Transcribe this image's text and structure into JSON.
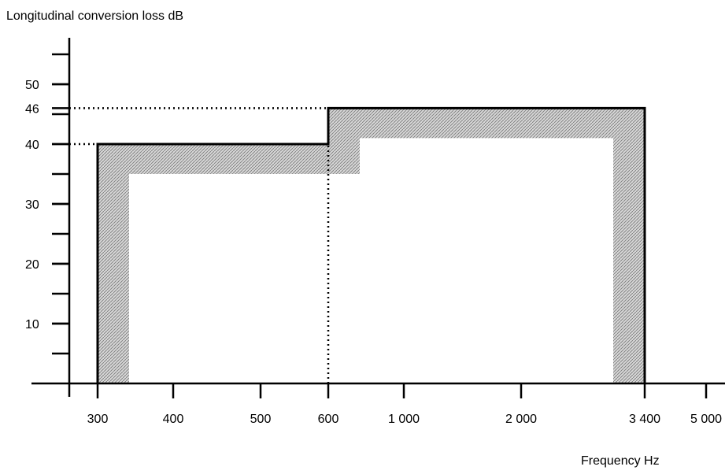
{
  "chart_data": {
    "type": "line",
    "title": "",
    "ylabel": "Longitudinal conversion loss dB",
    "xlabel": "Frequency Hz",
    "ylim": [
      0,
      57
    ],
    "y_ticks": [
      5,
      10,
      15,
      20,
      25,
      30,
      35,
      40,
      45,
      50,
      55
    ],
    "y_tick_labels": [
      {
        "value": 50,
        "text": "50"
      },
      {
        "value": 46,
        "text": "46"
      },
      {
        "value": 40,
        "text": "40"
      },
      {
        "value": 30,
        "text": "30"
      },
      {
        "value": 20,
        "text": "20"
      },
      {
        "value": 10,
        "text": "10"
      }
    ],
    "x_ticks": [
      {
        "value": 300,
        "text": "300"
      },
      {
        "value": 400,
        "text": "400"
      },
      {
        "value": 500,
        "text": "500"
      },
      {
        "value": 600,
        "text": "600"
      },
      {
        "value": 1000,
        "text": "1 000"
      },
      {
        "value": 2000,
        "text": "2 000"
      },
      {
        "value": 3400,
        "text": "3 400"
      },
      {
        "value": 5000,
        "text": "5 000"
      }
    ],
    "series": [
      {
        "points": [
          {
            "x": 300,
            "y": 0
          },
          {
            "x": 300,
            "y": 40
          },
          {
            "x": 600,
            "y": 40
          },
          {
            "x": 600,
            "y": 46
          },
          {
            "x": 3400,
            "y": 46
          },
          {
            "x": 3400,
            "y": 0
          }
        ]
      }
    ],
    "guides": [
      {
        "from": {
          "x": 0,
          "y": 46
        },
        "to": {
          "x": 600,
          "y": 46
        }
      },
      {
        "from": {
          "x": 0,
          "y": 40
        },
        "to": {
          "x": 300,
          "y": 40
        }
      },
      {
        "from": {
          "x": 600,
          "y": 0
        },
        "to": {
          "x": 600,
          "y": 40
        }
      }
    ],
    "grid": false
  }
}
